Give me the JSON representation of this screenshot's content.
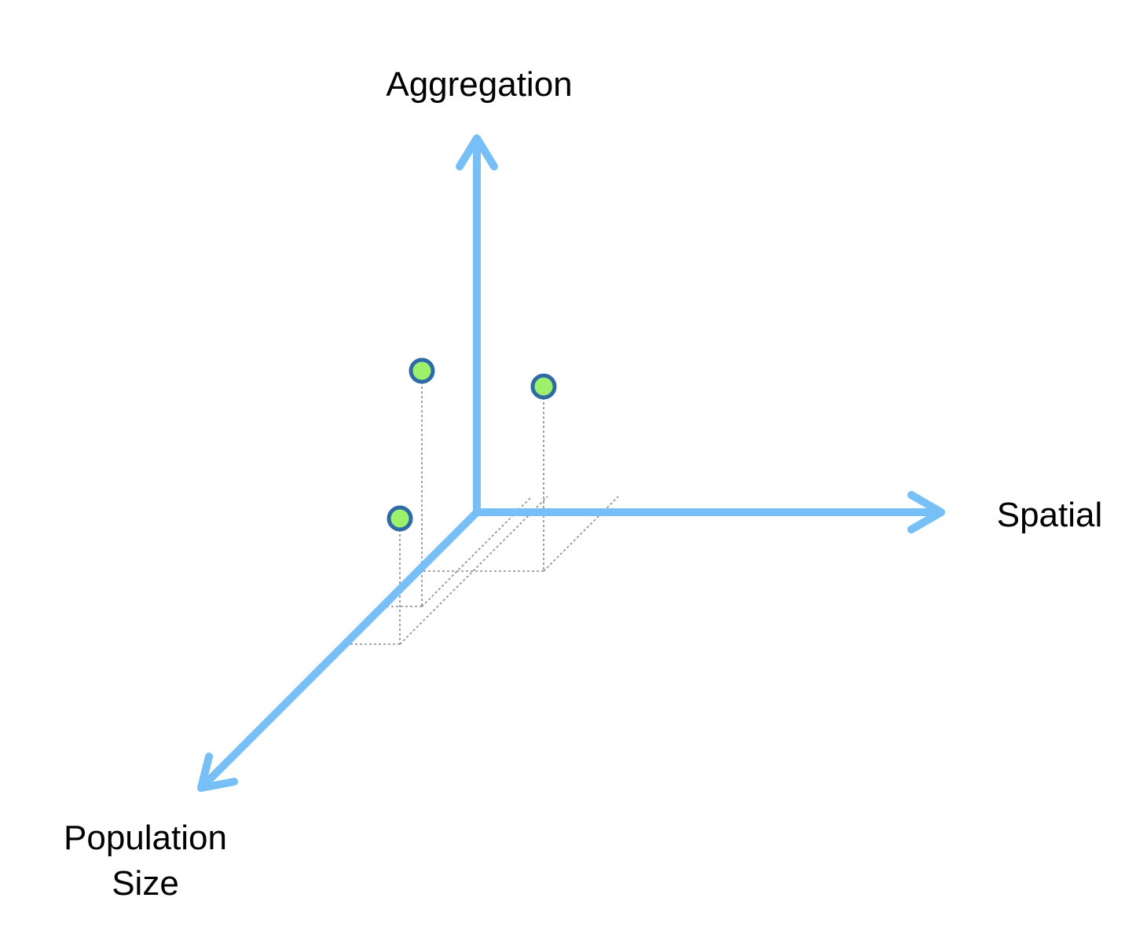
{
  "axes": {
    "vertical_label": "Aggregation",
    "horizontal_label": "Spatial",
    "depth_label_line1": "Population",
    "depth_label_line2": "Size"
  },
  "colors": {
    "axis": "#76bff7",
    "point_fill": "#9df06a",
    "point_stroke": "#2f6aa8",
    "guide": "#8a8a8a"
  },
  "chart_data": {
    "type": "scatter",
    "dimensions": [
      "Spatial",
      "Aggregation",
      "Population Size"
    ],
    "points": [
      {
        "spatial": 0.5,
        "aggregation": 3.0,
        "population_size": 2.0
      },
      {
        "spatial": 1.6,
        "aggregation": 2.35,
        "population_size": 1.25
      },
      {
        "spatial": 0.7,
        "aggregation": 1.6,
        "population_size": 2.8
      }
    ]
  }
}
